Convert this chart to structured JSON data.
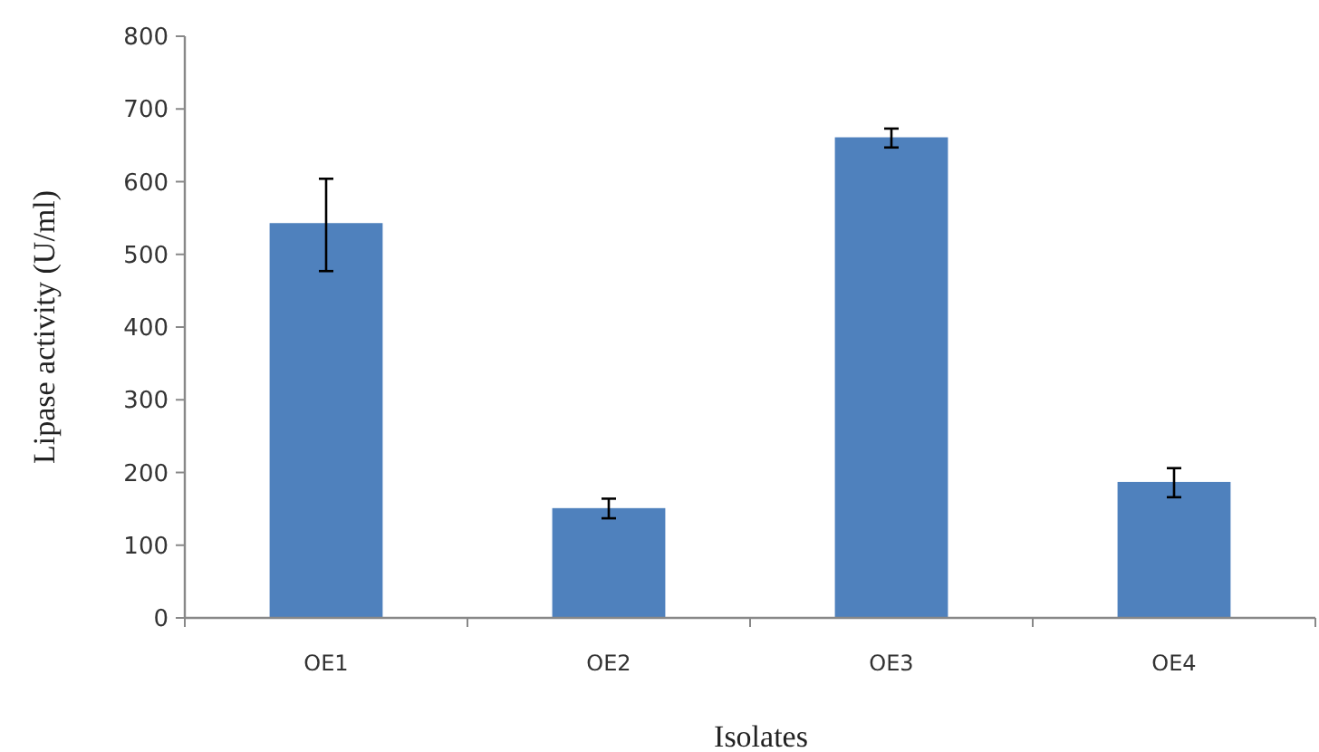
{
  "chart_data": {
    "type": "bar",
    "xlabel": "Isolates",
    "ylabel": "Lipase activity (U/ml)",
    "categories": [
      "OE1",
      "OE2",
      "OE3",
      "OE4"
    ],
    "values": [
      543,
      151,
      661,
      187
    ],
    "errors": [
      [
        477,
        604
      ],
      [
        137,
        164
      ],
      [
        647,
        673
      ],
      [
        166,
        206
      ]
    ],
    "color": "#4f81bd",
    "ylim": [
      0,
      800
    ],
    "yticks": [
      0,
      100,
      200,
      300,
      400,
      500,
      600,
      700,
      800
    ],
    "grid": false
  }
}
